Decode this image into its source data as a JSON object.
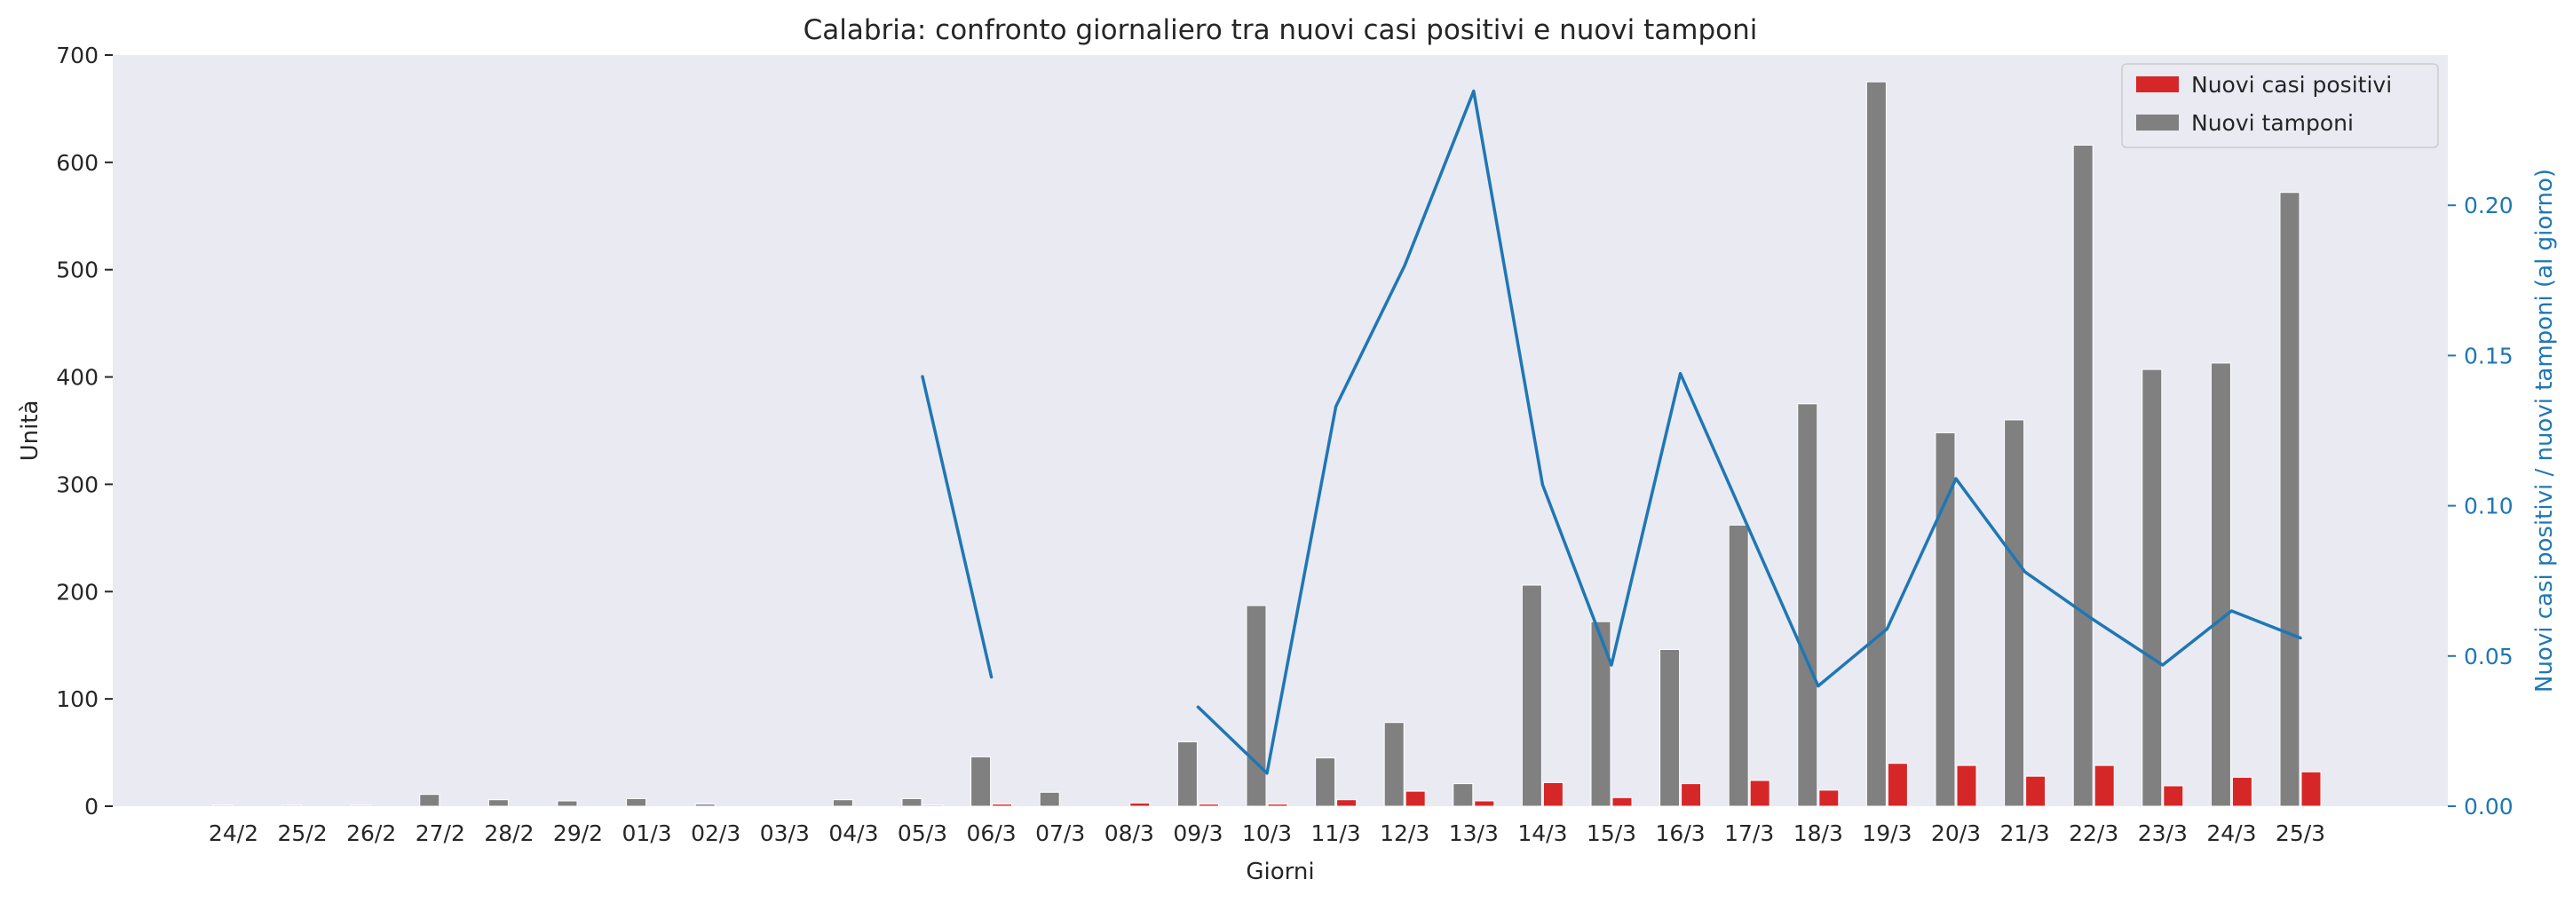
{
  "chart_data": {
    "type": "bar",
    "title": "Calabria: confronto giornaliero tra nuovi casi positivi e nuovi tamponi",
    "xlabel": "Giorni",
    "ylabel": "Unità",
    "y2label": "Nuovi casi positivi / nuovi tamponi (al giorno)",
    "ylim": [
      0,
      700
    ],
    "y2lim": [
      0,
      0.25
    ],
    "yticks": [
      "0",
      "100",
      "200",
      "300",
      "400",
      "500",
      "600",
      "700"
    ],
    "y2ticks": [
      "0.00",
      "0.05",
      "0.10",
      "0.15",
      "0.20"
    ],
    "grid": false,
    "legend_position": "top-right",
    "categories": [
      "24/2",
      "25/2",
      "26/2",
      "27/2",
      "28/2",
      "29/2",
      "01/3",
      "02/3",
      "03/3",
      "04/3",
      "05/3",
      "06/3",
      "07/3",
      "08/3",
      "09/3",
      "10/3",
      "11/3",
      "12/3",
      "13/3",
      "14/3",
      "15/3",
      "16/3",
      "17/3",
      "18/3",
      "19/3",
      "20/3",
      "21/3",
      "22/3",
      "23/3",
      "24/3",
      "25/3"
    ],
    "series": [
      {
        "name": "Nuovi casi positivi",
        "color": "#d62728",
        "values": [
          0,
          0,
          0,
          0,
          0,
          0,
          0,
          0,
          0,
          0,
          1,
          2,
          0,
          3,
          2,
          2,
          6,
          14,
          5,
          22,
          8,
          21,
          24,
          15,
          40,
          38,
          28,
          38,
          19,
          27,
          32
        ]
      },
      {
        "name": "Nuovi tamponi",
        "color": "#808080",
        "values": [
          1,
          1,
          1,
          11,
          6,
          5,
          7,
          2,
          0,
          6,
          7,
          46,
          13,
          0,
          60,
          187,
          45,
          78,
          21,
          206,
          172,
          146,
          262,
          375,
          675,
          348,
          360,
          616,
          407,
          413,
          572
        ]
      }
    ],
    "ratio_line": {
      "axis": "right",
      "color": "#1f77b4",
      "values": [
        null,
        null,
        null,
        null,
        null,
        null,
        null,
        null,
        null,
        null,
        0.143,
        0.043,
        null,
        null,
        0.033,
        0.011,
        0.133,
        0.18,
        0.238,
        0.107,
        0.047,
        0.144,
        0.092,
        0.04,
        0.059,
        0.109,
        0.078,
        0.062,
        0.047,
        0.065,
        0.056
      ]
    }
  }
}
